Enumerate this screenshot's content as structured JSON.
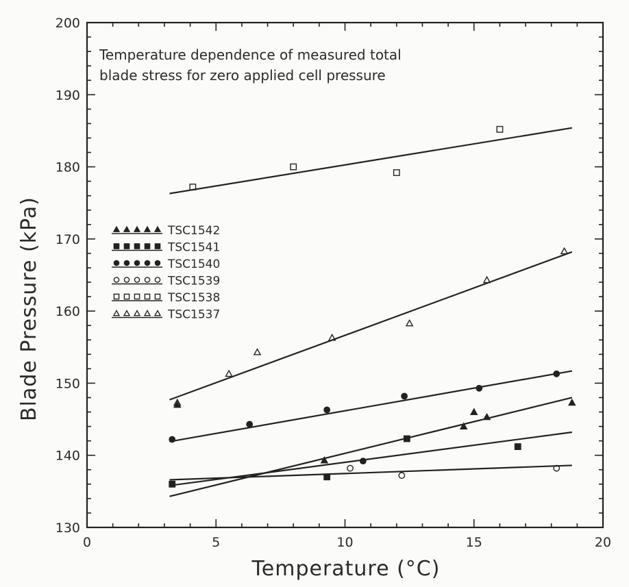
{
  "chart_data": {
    "type": "scatter",
    "xlabel": "Temperature (°C)",
    "ylabel": "Blade Pressure (kPa)",
    "xlim": [
      0,
      20
    ],
    "ylim": [
      130,
      200
    ],
    "x_ticks": [
      "0",
      "5",
      "10",
      "15",
      "20"
    ],
    "y_ticks": [
      "130",
      "140",
      "150",
      "160",
      "170",
      "180",
      "190",
      "200"
    ],
    "annotation": [
      "Temperature dependence of measured total",
      "blade stress for zero applied cell pressure"
    ],
    "legend_position": "left",
    "series": [
      {
        "name": "TSC1542",
        "marker": "filled-triangle",
        "points": [
          [
            3.5,
            147
          ],
          [
            9.2,
            139.3
          ],
          [
            14.6,
            144
          ],
          [
            15.0,
            146
          ],
          [
            15.5,
            145.3
          ],
          [
            18.8,
            147.3
          ]
        ],
        "fit": [
          [
            3.2,
            134.3
          ],
          [
            18.8,
            148
          ]
        ]
      },
      {
        "name": "TSC1541",
        "marker": "filled-square",
        "points": [
          [
            3.3,
            136
          ],
          [
            9.3,
            137
          ],
          [
            12.4,
            142.3
          ],
          [
            16.7,
            141.2
          ]
        ],
        "fit": [
          [
            3.2,
            135.8
          ],
          [
            18.8,
            143.2
          ]
        ]
      },
      {
        "name": "TSC1540",
        "marker": "filled-circle",
        "points": [
          [
            3.3,
            142.2
          ],
          [
            6.3,
            144.3
          ],
          [
            9.3,
            146.3
          ],
          [
            12.3,
            148.2
          ],
          [
            15.2,
            149.3
          ],
          [
            18.2,
            151.3
          ],
          [
            10.7,
            139.2
          ]
        ],
        "fit": [
          [
            3.2,
            141.9
          ],
          [
            18.8,
            151.7
          ]
        ]
      },
      {
        "name": "TSC1539",
        "marker": "open-circle",
        "points": [
          [
            3.3,
            136
          ],
          [
            10.2,
            138.2
          ],
          [
            12.2,
            137.2
          ],
          [
            18.2,
            138.2
          ]
        ],
        "fit": [
          [
            3.2,
            136.6
          ],
          [
            18.8,
            138.6
          ]
        ]
      },
      {
        "name": "TSC1538",
        "marker": "open-square",
        "points": [
          [
            4.1,
            177.2
          ],
          [
            8.0,
            180
          ],
          [
            12.0,
            179.2
          ],
          [
            16.0,
            185.2
          ]
        ],
        "fit": [
          [
            3.2,
            176.3
          ],
          [
            18.8,
            185.4
          ]
        ]
      },
      {
        "name": "TSC1537",
        "marker": "open-triangle",
        "points": [
          [
            3.5,
            147.3
          ],
          [
            5.5,
            151.3
          ],
          [
            6.6,
            154.3
          ],
          [
            9.5,
            156.3
          ],
          [
            12.5,
            158.3
          ],
          [
            15.5,
            164.3
          ],
          [
            18.5,
            168.3
          ]
        ],
        "fit": [
          [
            3.2,
            147.7
          ],
          [
            18.8,
            168.2
          ]
        ]
      }
    ]
  }
}
